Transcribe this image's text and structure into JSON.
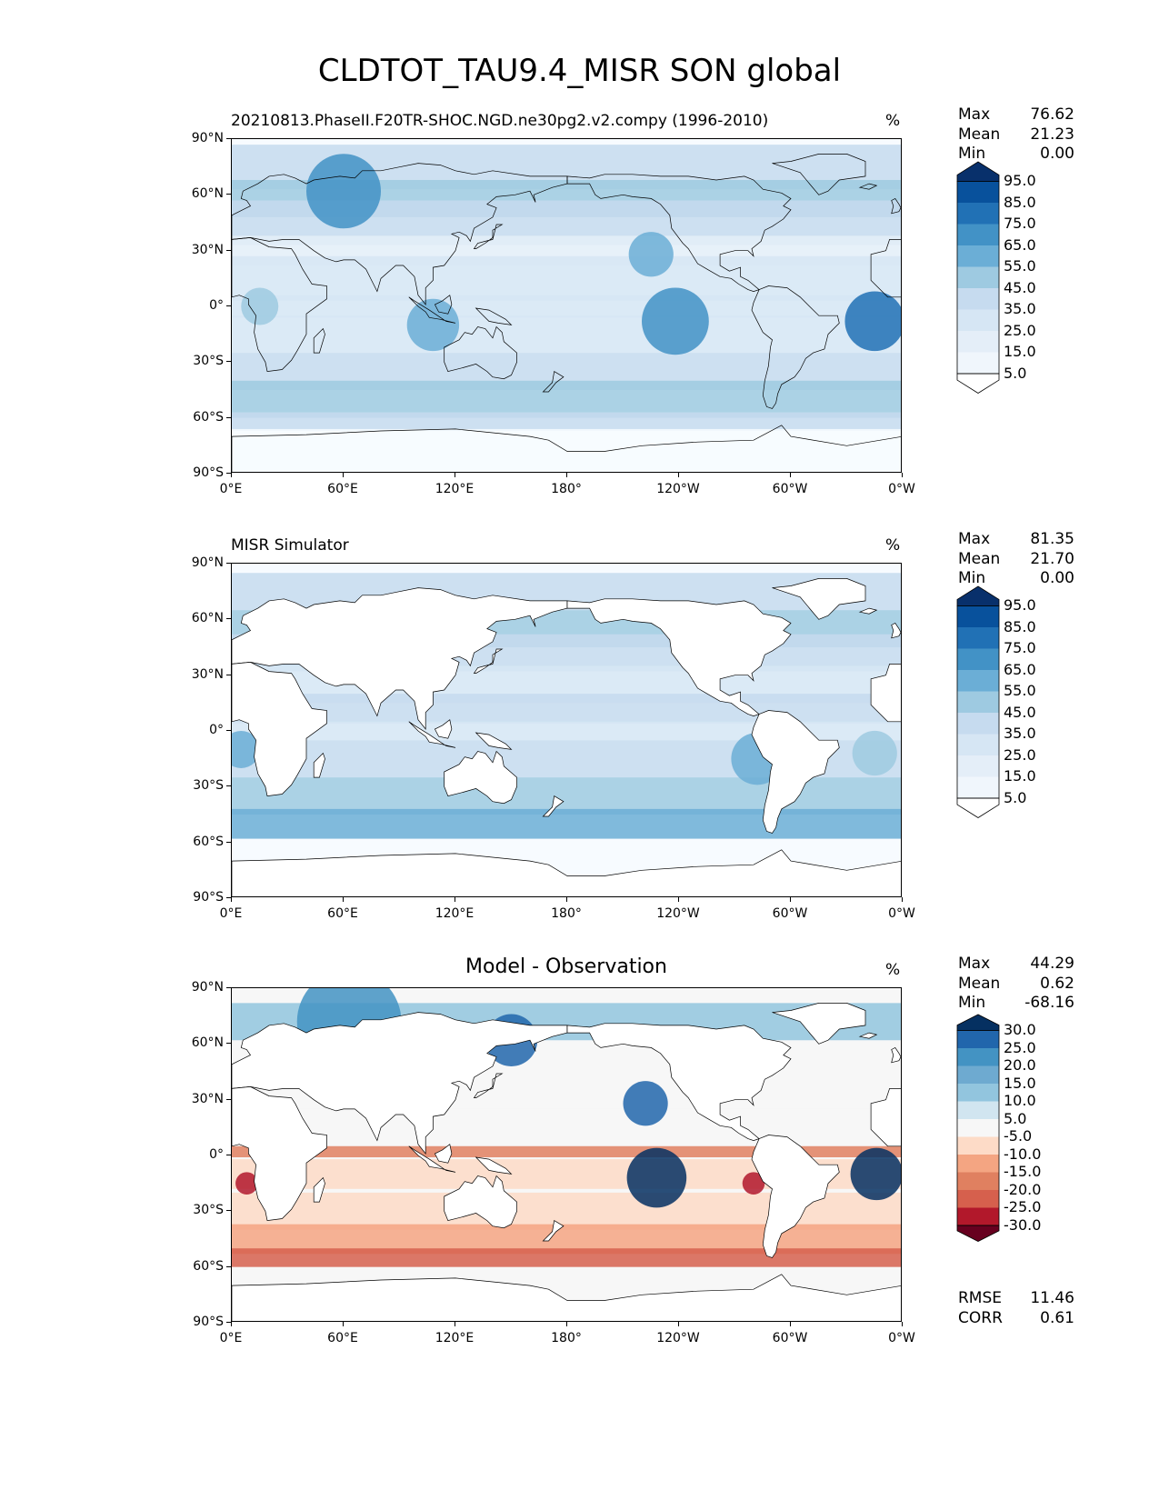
{
  "title": "CLDTOT_TAU9.4_MISR SON global",
  "lat_ticks": [
    "90°N",
    "60°N",
    "30°N",
    "0°",
    "30°S",
    "60°S",
    "90°S"
  ],
  "lon_ticks": [
    "0°E",
    "60°E",
    "120°E",
    "180°",
    "120°W",
    "60°W",
    "0°W"
  ],
  "panels": [
    {
      "id": "model",
      "title": "20210813.PhaseII.F20TR-SHOC.NGD.ne30pg2.v2.compy (1996-2010)",
      "unit": "%",
      "stats": [
        {
          "label": "Max",
          "value": "76.62"
        },
        {
          "label": "Mean",
          "value": "21.23"
        },
        {
          "label": "Min",
          "value": "0.00"
        }
      ],
      "colorbar": {
        "labels": [
          "95.0",
          "85.0",
          "75.0",
          "65.0",
          "55.0",
          "45.0",
          "35.0",
          "25.0",
          "15.0",
          "5.0"
        ],
        "colors": [
          "#08306b",
          "#08519c",
          "#2171b5",
          "#4292c6",
          "#6baed6",
          "#9ecae1",
          "#c6dbef",
          "#d6e6f4",
          "#e4eef8",
          "#f0f6fc",
          "#ffffff"
        ]
      }
    },
    {
      "id": "obs",
      "title": "MISR Simulator",
      "unit": "%",
      "stats": [
        {
          "label": "Max",
          "value": "81.35"
        },
        {
          "label": "Mean",
          "value": "21.70"
        },
        {
          "label": "Min",
          "value": "0.00"
        }
      ],
      "colorbar": {
        "labels": [
          "95.0",
          "85.0",
          "75.0",
          "65.0",
          "55.0",
          "45.0",
          "35.0",
          "25.0",
          "15.0",
          "5.0"
        ],
        "colors": [
          "#08306b",
          "#08519c",
          "#2171b5",
          "#4292c6",
          "#6baed6",
          "#9ecae1",
          "#c6dbef",
          "#d6e6f4",
          "#e4eef8",
          "#f0f6fc",
          "#ffffff"
        ]
      }
    },
    {
      "id": "diff",
      "title": "Model - Observation",
      "unit": "%",
      "stats": [
        {
          "label": "Max",
          "value": "44.29"
        },
        {
          "label": "Mean",
          "value": "0.62"
        },
        {
          "label": "Min",
          "value": "-68.16"
        }
      ],
      "extra_stats": [
        {
          "label": "RMSE",
          "value": "11.46"
        },
        {
          "label": "CORR",
          "value": "0.61"
        }
      ],
      "colorbar": {
        "labels": [
          "30.0",
          "25.0",
          "20.0",
          "15.0",
          "10.0",
          "5.0",
          "-5.0",
          "-10.0",
          "-15.0",
          "-20.0",
          "-25.0",
          "-30.0"
        ],
        "colors": [
          "#053061",
          "#2166ac",
          "#4393c3",
          "#6eaad0",
          "#92c5de",
          "#d1e5f0",
          "#f7f7f7",
          "#fddbc7",
          "#f4a582",
          "#e08060",
          "#d6604d",
          "#b2182b",
          "#67001f"
        ]
      }
    }
  ]
}
